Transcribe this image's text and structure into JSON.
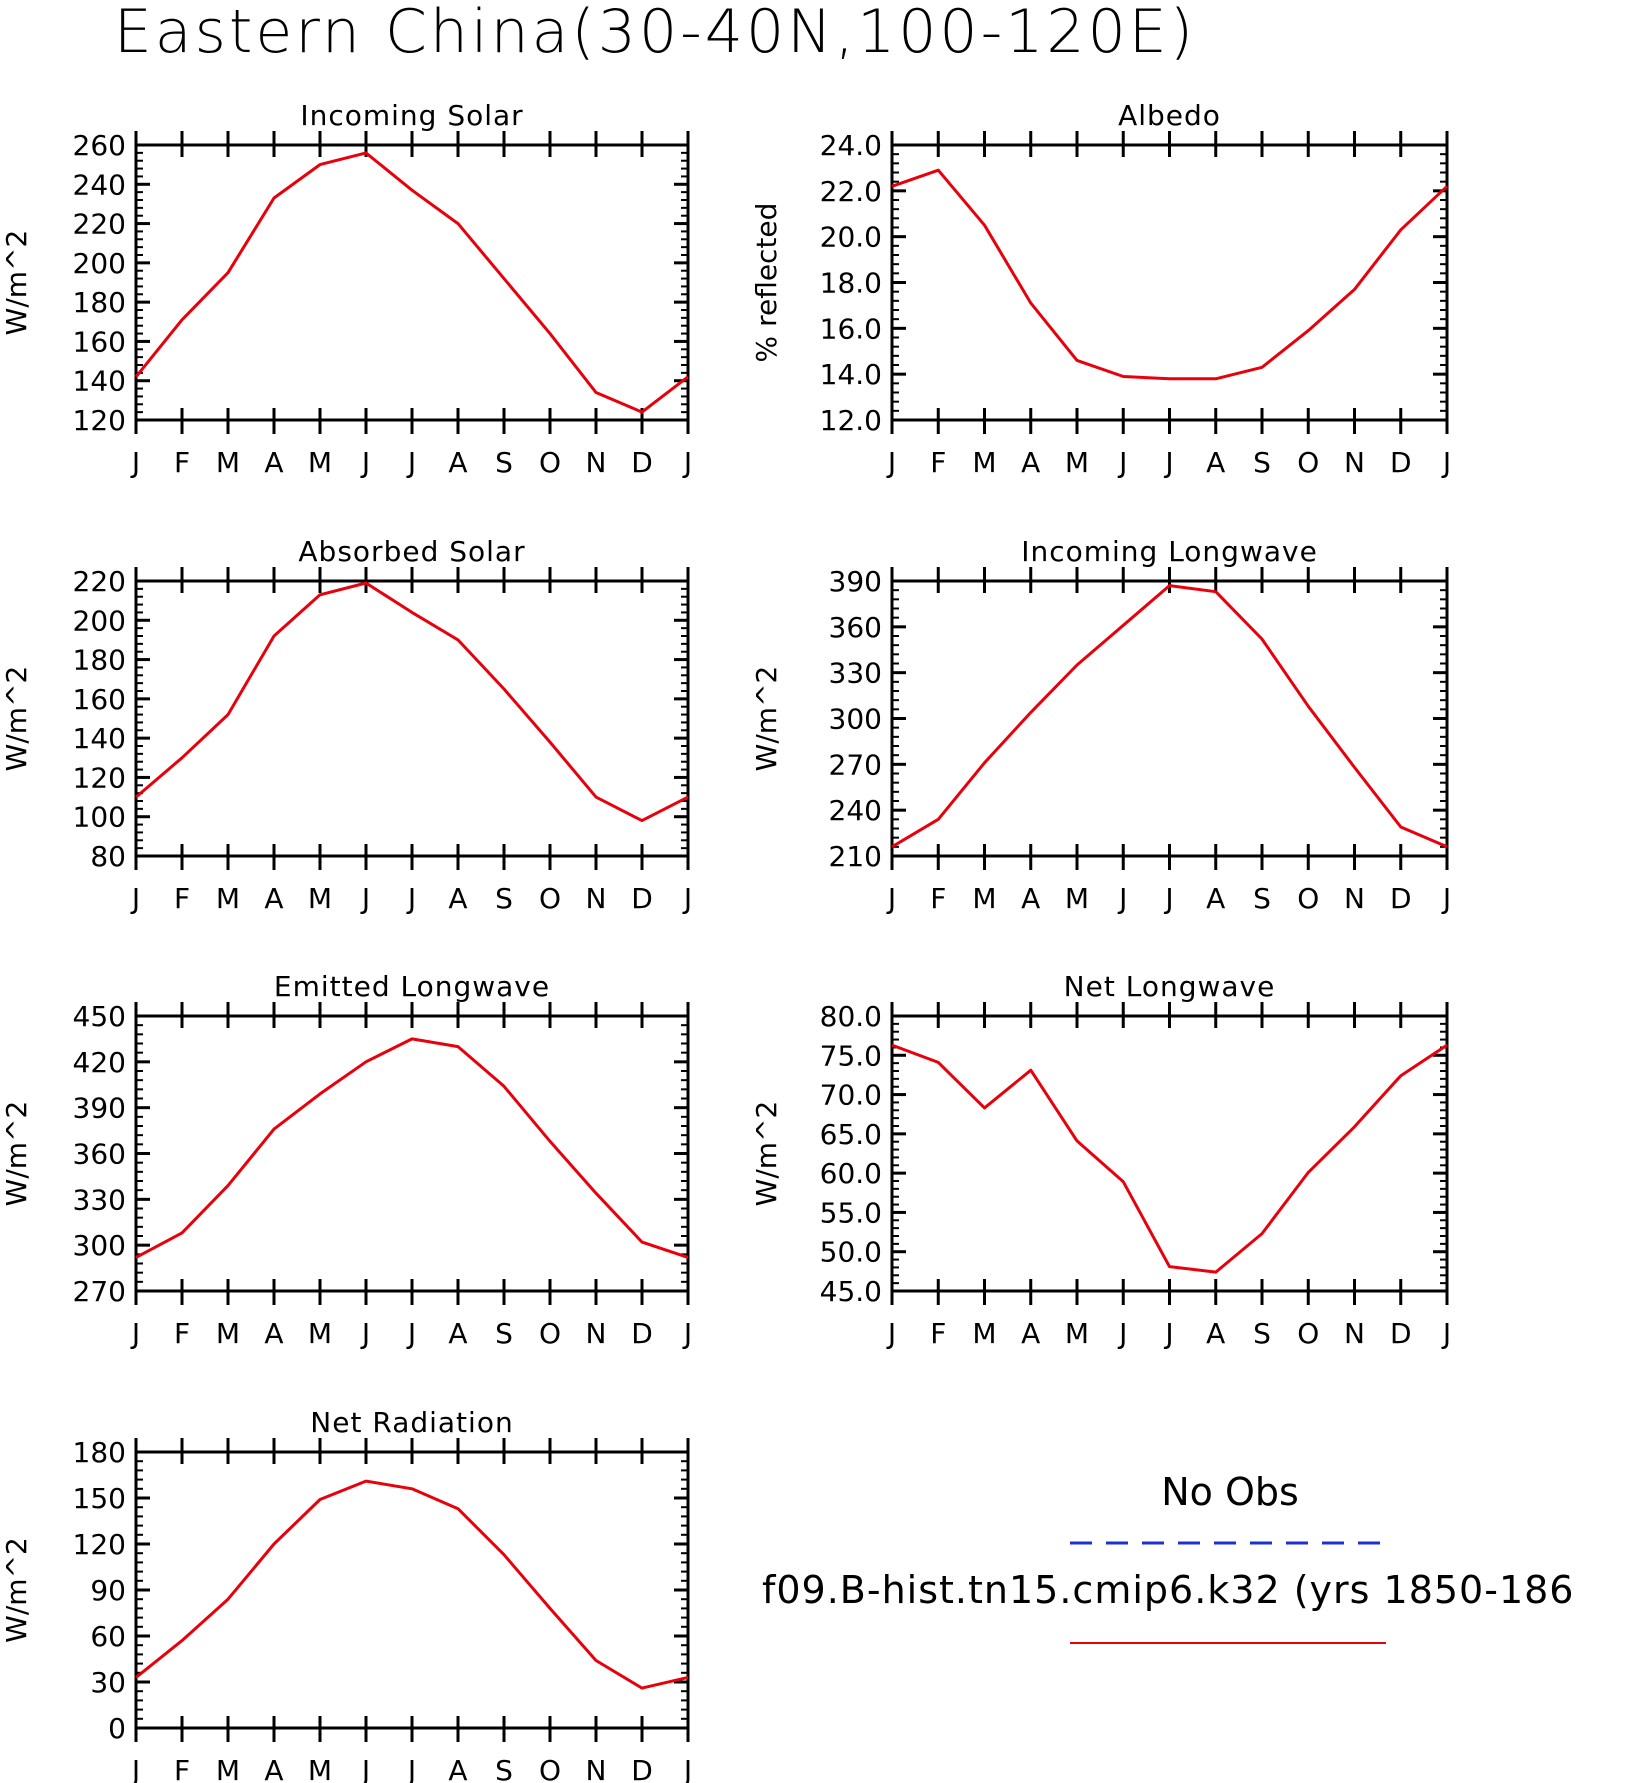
{
  "title": "Eastern China(30-40N,100-120E)",
  "legend": {
    "obs_label": "No Obs",
    "obs_color": "#1f2fd6",
    "case_label": "f09.B-hist.tn15.cmip6.k32 (yrs 1850-186",
    "case_color": "#e8000b"
  },
  "chart_data": [
    {
      "type": "line",
      "title": "Incoming Solar",
      "ylabel": "W/m^2",
      "x": [
        "J",
        "F",
        "M",
        "A",
        "M",
        "J",
        "J",
        "A",
        "S",
        "O",
        "N",
        "D",
        "J"
      ],
      "ylim": [
        120,
        260
      ],
      "yticks": [
        "120",
        "140",
        "160",
        "180",
        "200",
        "220",
        "240",
        "260"
      ],
      "series": [
        {
          "values": [
            142,
            171,
            195,
            233,
            250,
            256,
            237,
            220,
            192,
            164,
            134,
            124,
            142
          ]
        }
      ]
    },
    {
      "type": "line",
      "title": "Albedo",
      "ylabel": "% reflected",
      "x": [
        "J",
        "F",
        "M",
        "A",
        "M",
        "J",
        "J",
        "A",
        "S",
        "O",
        "N",
        "D",
        "J"
      ],
      "ylim": [
        12,
        24
      ],
      "yticks": [
        "12.0",
        "14.0",
        "16.0",
        "18.0",
        "20.0",
        "22.0",
        "24.0"
      ],
      "series": [
        {
          "values": [
            22.2,
            22.9,
            20.5,
            17.1,
            14.6,
            13.9,
            13.8,
            13.8,
            14.3,
            15.9,
            17.7,
            20.3,
            22.2
          ]
        }
      ]
    },
    {
      "type": "line",
      "title": "Absorbed Solar",
      "ylabel": "W/m^2",
      "x": [
        "J",
        "F",
        "M",
        "A",
        "M",
        "J",
        "J",
        "A",
        "S",
        "O",
        "N",
        "D",
        "J"
      ],
      "ylim": [
        80,
        220
      ],
      "yticks": [
        "80",
        "100",
        "120",
        "140",
        "160",
        "180",
        "200",
        "220"
      ],
      "series": [
        {
          "values": [
            110,
            130,
            152,
            192,
            213,
            219,
            204,
            190,
            165,
            138,
            110,
            98,
            110
          ]
        }
      ]
    },
    {
      "type": "line",
      "title": "Incoming Longwave",
      "ylabel": "W/m^2",
      "x": [
        "J",
        "F",
        "M",
        "A",
        "M",
        "J",
        "J",
        "A",
        "S",
        "O",
        "N",
        "D",
        "J"
      ],
      "ylim": [
        210,
        390
      ],
      "yticks": [
        "210",
        "240",
        "270",
        "300",
        "330",
        "360",
        "390"
      ],
      "series": [
        {
          "values": [
            216,
            234,
            271,
            304,
            335,
            361,
            387,
            383,
            352,
            308,
            268,
            229,
            216
          ]
        }
      ]
    },
    {
      "type": "line",
      "title": "Emitted Longwave",
      "ylabel": "W/m^2",
      "x": [
        "J",
        "F",
        "M",
        "A",
        "M",
        "J",
        "J",
        "A",
        "S",
        "O",
        "N",
        "D",
        "J"
      ],
      "ylim": [
        270,
        450
      ],
      "yticks": [
        "270",
        "300",
        "330",
        "360",
        "390",
        "420",
        "450"
      ],
      "series": [
        {
          "values": [
            292,
            308,
            339,
            376,
            399,
            420,
            435,
            430,
            404,
            368,
            334,
            302,
            292
          ]
        }
      ]
    },
    {
      "type": "line",
      "title": "Net Longwave",
      "ylabel": "W/m^2",
      "x": [
        "J",
        "F",
        "M",
        "A",
        "M",
        "J",
        "J",
        "A",
        "S",
        "O",
        "N",
        "D",
        "J"
      ],
      "ylim": [
        45,
        80
      ],
      "yticks": [
        "45.0",
        "50.0",
        "55.0",
        "60.0",
        "65.0",
        "70.0",
        "75.0",
        "80.0"
      ],
      "series": [
        {
          "values": [
            76.3,
            74.1,
            68.3,
            73.1,
            64.1,
            58.9,
            48.1,
            47.4,
            52.3,
            60.1,
            65.9,
            72.4,
            76.3
          ]
        }
      ]
    },
    {
      "type": "line",
      "title": "Net Radiation",
      "ylabel": "W/m^2",
      "x": [
        "J",
        "F",
        "M",
        "A",
        "M",
        "J",
        "J",
        "A",
        "S",
        "O",
        "N",
        "D",
        "J"
      ],
      "ylim": [
        0,
        180
      ],
      "yticks": [
        "0",
        "30",
        "60",
        "90",
        "120",
        "150",
        "180"
      ],
      "series": [
        {
          "values": [
            33,
            57,
            84,
            120,
            149,
            161,
            156,
            143,
            113,
            78,
            44,
            26,
            33
          ]
        }
      ]
    }
  ]
}
